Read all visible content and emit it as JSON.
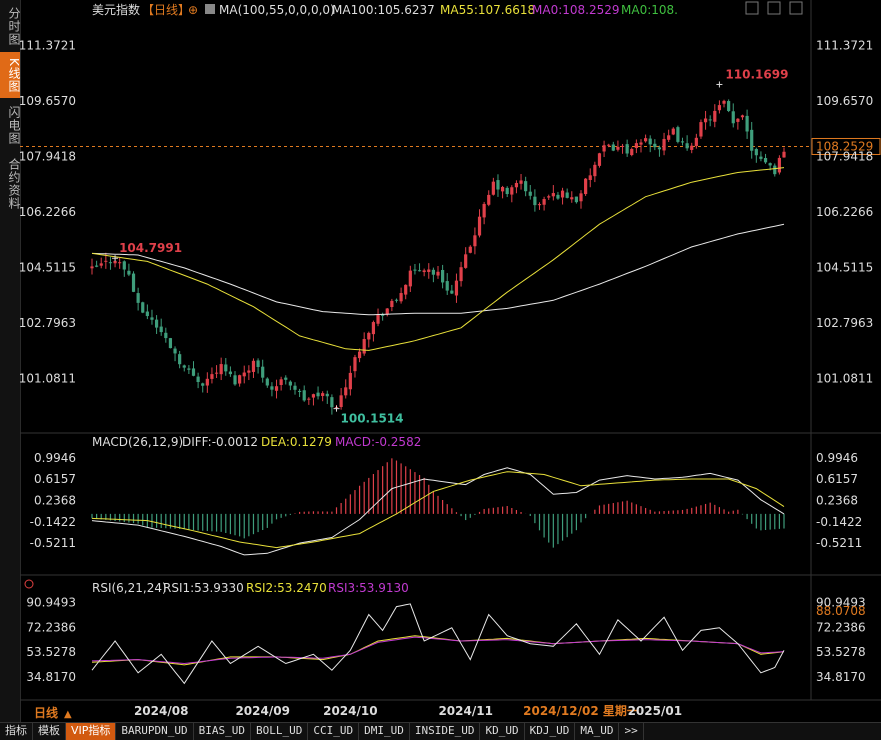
{
  "sidebar": {
    "tabs": [
      {
        "label": "分时图",
        "active": false
      },
      {
        "label": "K线图",
        "active": true
      },
      {
        "label": "闪电图",
        "active": false
      },
      {
        "label": "合约资料",
        "active": false
      }
    ]
  },
  "header": {
    "symbol": "美元指数",
    "period": "【日线】",
    "ma_label": "MA(100,55,0,0,0,0)",
    "ma100": "MA100:105.6237",
    "ma55": "MA55:107.6618",
    "ma0a": "MA0:108.2529",
    "ma0b": "MA0:108."
  },
  "window_buttons": [
    "□",
    "⊞",
    "⊟",
    "⊠"
  ],
  "macd_header": {
    "name": "MACD(26,12,9)",
    "diff": "DIFF:-0.0012",
    "dea": "DEA:0.1279",
    "macd": "MACD:-0.2582"
  },
  "rsi_header": {
    "name": "RSI(6,21,24)",
    "rsi1": "RSI1:53.9330",
    "rsi2": "RSI2:53.2470",
    "rsi3": "RSI3:53.9130"
  },
  "colors": {
    "up": "#e0404a",
    "down": "#3f9e7c",
    "ma55": "#e8e03a",
    "ma100": "#e8e8e8",
    "macd_dea": "#e8e03a",
    "macd_neg": "#c13ad0",
    "price_line": "#e07a20",
    "highlight": "#e07a20"
  },
  "chart_data": {
    "type": "candlestick",
    "title": "美元指数 日线",
    "price_axis": {
      "ticks": [
        "111.3721",
        "109.6570",
        "107.9418",
        "106.2266",
        "104.5115",
        "102.7963",
        "101.0811"
      ],
      "values": [
        111.3721,
        109.657,
        107.9418,
        106.2266,
        104.5115,
        102.7963,
        101.0811
      ],
      "ylim": [
        99.8,
        112.1
      ]
    },
    "current_price": "108.2529",
    "current_value": 108.2529,
    "annotations": {
      "high_label": "110.1699",
      "high_value": 110.1699,
      "high_index": 136,
      "low_label": "100.1514",
      "low_value": 100.1514,
      "low_index": 53,
      "early_high_label": "104.7991",
      "early_high_value": 104.7991,
      "early_high_index": 5
    },
    "x_axis": {
      "labels": [
        "2024/08",
        "2024/09",
        "2024/10",
        "2024/11",
        "2024/12/02 星期一",
        "2025/01"
      ],
      "label_indices": [
        15,
        37,
        56,
        81,
        106,
        122
      ],
      "highlight_index": 106
    },
    "waypoints": [
      [
        0,
        104.45
      ],
      [
        5,
        104.8
      ],
      [
        8,
        104.3
      ],
      [
        10,
        103.3
      ],
      [
        13,
        102.9
      ],
      [
        17,
        102.1
      ],
      [
        20,
        101.4
      ],
      [
        24,
        100.95
      ],
      [
        28,
        101.45
      ],
      [
        31,
        101.0
      ],
      [
        35,
        101.6
      ],
      [
        39,
        100.75
      ],
      [
        42,
        101.1
      ],
      [
        46,
        100.45
      ],
      [
        50,
        100.6
      ],
      [
        53,
        100.15
      ],
      [
        56,
        101.3
      ],
      [
        59,
        102.4
      ],
      [
        62,
        103.0
      ],
      [
        66,
        103.5
      ],
      [
        69,
        104.3
      ],
      [
        72,
        104.5
      ],
      [
        75,
        104.3
      ],
      [
        78,
        103.7
      ],
      [
        81,
        104.8
      ],
      [
        84,
        106.0
      ],
      [
        87,
        107.1
      ],
      [
        90,
        106.8
      ],
      [
        93,
        107.2
      ],
      [
        96,
        106.4
      ],
      [
        99,
        106.7
      ],
      [
        102,
        106.8
      ],
      [
        105,
        106.6
      ],
      [
        108,
        107.4
      ],
      [
        111,
        108.2
      ],
      [
        114,
        108.25
      ],
      [
        117,
        108.1
      ],
      [
        120,
        108.5
      ],
      [
        123,
        108.2
      ],
      [
        126,
        108.7
      ],
      [
        129,
        108.1
      ],
      [
        132,
        108.9
      ],
      [
        135,
        109.3
      ],
      [
        137,
        109.6
      ],
      [
        139,
        108.9
      ],
      [
        141,
        109.3
      ],
      [
        143,
        108.2
      ],
      [
        146,
        107.8
      ],
      [
        148,
        107.5
      ],
      [
        150,
        108.2
      ]
    ],
    "ma55": {
      "name": "MA55",
      "waypoints": [
        [
          0,
          104.95
        ],
        [
          12,
          104.7
        ],
        [
          25,
          104.0
        ],
        [
          35,
          103.3
        ],
        [
          45,
          102.4
        ],
        [
          55,
          102.0
        ],
        [
          60,
          101.95
        ],
        [
          70,
          102.25
        ],
        [
          80,
          102.65
        ],
        [
          90,
          103.75
        ],
        [
          100,
          104.75
        ],
        [
          110,
          105.85
        ],
        [
          120,
          106.7
        ],
        [
          130,
          107.15
        ],
        [
          140,
          107.45
        ],
        [
          150,
          107.6
        ]
      ]
    },
    "ma100": {
      "name": "MA100",
      "waypoints": [
        [
          0,
          104.95
        ],
        [
          10,
          104.9
        ],
        [
          20,
          104.5
        ],
        [
          30,
          104.0
        ],
        [
          40,
          103.45
        ],
        [
          50,
          103.15
        ],
        [
          60,
          103.05
        ],
        [
          70,
          103.1
        ],
        [
          80,
          103.1
        ],
        [
          90,
          103.25
        ],
        [
          100,
          103.5
        ],
        [
          110,
          104.0
        ],
        [
          120,
          104.55
        ],
        [
          130,
          105.15
        ],
        [
          140,
          105.55
        ],
        [
          150,
          105.85
        ]
      ]
    },
    "macd": {
      "axis_ticks": [
        "0.9946",
        "0.6157",
        "0.2368",
        "-0.1422",
        "-0.5211"
      ],
      "axis_values": [
        0.9946,
        0.6157,
        0.2368,
        -0.1422,
        -0.5211
      ],
      "ylim": [
        -0.82,
        1.1
      ],
      "diff_waypoints": [
        [
          0,
          -0.12
        ],
        [
          10,
          -0.2
        ],
        [
          20,
          -0.4
        ],
        [
          28,
          -0.58
        ],
        [
          33,
          -0.73
        ],
        [
          38,
          -0.7
        ],
        [
          45,
          -0.52
        ],
        [
          52,
          -0.42
        ],
        [
          58,
          -0.1
        ],
        [
          65,
          0.45
        ],
        [
          72,
          0.62
        ],
        [
          78,
          0.55
        ],
        [
          81,
          0.52
        ],
        [
          85,
          0.7
        ],
        [
          90,
          0.82
        ],
        [
          95,
          0.7
        ],
        [
          100,
          0.35
        ],
        [
          105,
          0.38
        ],
        [
          110,
          0.6
        ],
        [
          116,
          0.68
        ],
        [
          122,
          0.62
        ],
        [
          128,
          0.65
        ],
        [
          134,
          0.72
        ],
        [
          140,
          0.6
        ],
        [
          145,
          0.25
        ],
        [
          150,
          0.0
        ]
      ],
      "dea_waypoints": [
        [
          0,
          -0.08
        ],
        [
          12,
          -0.12
        ],
        [
          22,
          -0.3
        ],
        [
          32,
          -0.5
        ],
        [
          40,
          -0.6
        ],
        [
          48,
          -0.5
        ],
        [
          58,
          -0.35
        ],
        [
          66,
          0.0
        ],
        [
          74,
          0.4
        ],
        [
          82,
          0.6
        ],
        [
          90,
          0.75
        ],
        [
          98,
          0.7
        ],
        [
          106,
          0.5
        ],
        [
          114,
          0.55
        ],
        [
          122,
          0.6
        ],
        [
          130,
          0.62
        ],
        [
          138,
          0.62
        ],
        [
          144,
          0.45
        ],
        [
          150,
          0.13
        ]
      ]
    },
    "rsi": {
      "axis_ticks": [
        "90.9493",
        "72.2386",
        "53.5278",
        "34.8170"
      ],
      "axis_values": [
        90.9493,
        72.2386,
        53.5278,
        34.817
      ],
      "ylim": [
        22,
        96
      ],
      "last_value_label": "88.0708",
      "rsi1_waypoints": [
        [
          0,
          40
        ],
        [
          5,
          62
        ],
        [
          10,
          38
        ],
        [
          15,
          52
        ],
        [
          20,
          30
        ],
        [
          26,
          62
        ],
        [
          30,
          45
        ],
        [
          36,
          58
        ],
        [
          42,
          45
        ],
        [
          48,
          52
        ],
        [
          52,
          40
        ],
        [
          56,
          55
        ],
        [
          60,
          82
        ],
        [
          63,
          70
        ],
        [
          66,
          88
        ],
        [
          69,
          90
        ],
        [
          72,
          62
        ],
        [
          78,
          72
        ],
        [
          82,
          48
        ],
        [
          86,
          82
        ],
        [
          90,
          66
        ],
        [
          95,
          60
        ],
        [
          100,
          58
        ],
        [
          105,
          75
        ],
        [
          110,
          52
        ],
        [
          114,
          78
        ],
        [
          119,
          62
        ],
        [
          124,
          80
        ],
        [
          128,
          55
        ],
        [
          132,
          70
        ],
        [
          136,
          72
        ],
        [
          140,
          60
        ],
        [
          145,
          38
        ],
        [
          148,
          42
        ],
        [
          150,
          55
        ]
      ],
      "rsi2_waypoints": [
        [
          0,
          46
        ],
        [
          10,
          48
        ],
        [
          20,
          44
        ],
        [
          30,
          50
        ],
        [
          40,
          50
        ],
        [
          50,
          48
        ],
        [
          56,
          52
        ],
        [
          62,
          62
        ],
        [
          70,
          66
        ],
        [
          80,
          62
        ],
        [
          90,
          64
        ],
        [
          100,
          60
        ],
        [
          110,
          62
        ],
        [
          120,
          64
        ],
        [
          130,
          62
        ],
        [
          140,
          60
        ],
        [
          145,
          52
        ],
        [
          150,
          54
        ]
      ],
      "rsi3_waypoints": [
        [
          0,
          47
        ],
        [
          10,
          48
        ],
        [
          20,
          45
        ],
        [
          30,
          49
        ],
        [
          40,
          50
        ],
        [
          50,
          49
        ],
        [
          56,
          52
        ],
        [
          62,
          61
        ],
        [
          70,
          65
        ],
        [
          80,
          62
        ],
        [
          90,
          63
        ],
        [
          100,
          60
        ],
        [
          110,
          62
        ],
        [
          120,
          63
        ],
        [
          130,
          62
        ],
        [
          140,
          60
        ],
        [
          145,
          53
        ],
        [
          150,
          54
        ]
      ]
    }
  },
  "bottom_tabs": {
    "period_label": "日线",
    "items": [
      {
        "label": "指标",
        "selected": false
      },
      {
        "label": "模板",
        "selected": false
      },
      {
        "label": "VIP指标",
        "selected": true
      },
      {
        "label": "BARUPDN_UD",
        "selected": false
      },
      {
        "label": "BIAS_UD",
        "selected": false
      },
      {
        "label": "BOLL_UD",
        "selected": false
      },
      {
        "label": "CCI_UD",
        "selected": false
      },
      {
        "label": "DMI_UD",
        "selected": false
      },
      {
        "label": "INSIDE_UD",
        "selected": false
      },
      {
        "label": "KD_UD",
        "selected": false
      },
      {
        "label": "KDJ_UD",
        "selected": false
      },
      {
        "label": "MA_UD",
        "selected": false
      },
      {
        "label": ">>",
        "selected": false
      }
    ]
  }
}
